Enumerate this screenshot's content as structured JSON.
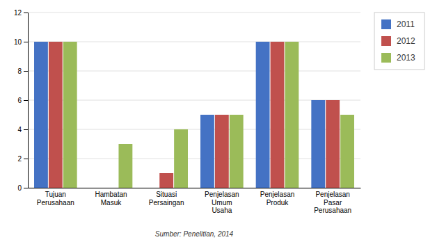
{
  "chart_data": {
    "type": "bar",
    "categories": [
      "Tujuan\nPerusahaan",
      "Hambatan\nMasuk",
      "Situasi\nPersaingan",
      "Penjelasan\nUmum\nUsaha",
      "Penjelasan\nProduk",
      "Penjelasan\nPasar\nPerusahaan"
    ],
    "series": [
      {
        "name": "2011",
        "color": "#4472C4",
        "values": [
          10,
          0,
          0,
          5,
          10,
          6
        ]
      },
      {
        "name": "2012",
        "color": "#C0504D",
        "values": [
          10,
          0,
          1,
          5,
          10,
          6
        ]
      },
      {
        "name": "2013",
        "color": "#9BBB59",
        "values": [
          10,
          3,
          4,
          5,
          10,
          5
        ]
      }
    ],
    "ylim": [
      0,
      12
    ],
    "yticks": [
      0,
      2,
      4,
      6,
      8,
      10,
      12
    ],
    "grid": true,
    "legend": "right",
    "annotations": [
      "Sumber: Penelitian, 2014"
    ]
  }
}
